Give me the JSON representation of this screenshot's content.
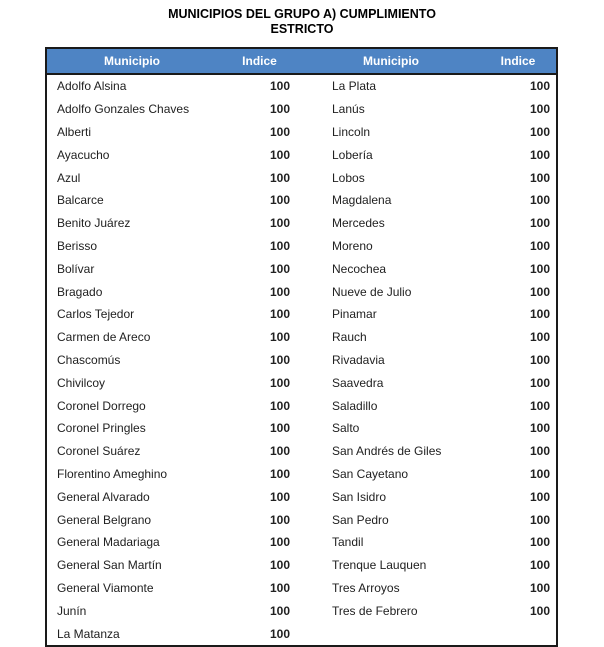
{
  "document": {
    "title_line1": "MUNICIPIOS DEL GRUPO A) CUMPLIMIENTO",
    "title_line2": "ESTRICTO"
  },
  "colors": {
    "header_bg": "#4e84c4",
    "header_text": "#ffffff",
    "border": "#1a1a1a",
    "body_text": "#212121"
  },
  "table": {
    "headers": [
      "Municipio",
      "Indice",
      "Municipio",
      "Indice"
    ],
    "rows": [
      {
        "m1": "Adolfo Alsina",
        "i1": "100",
        "m2": "La Plata",
        "i2": "100"
      },
      {
        "m1": "Adolfo Gonzales Chaves",
        "i1": "100",
        "m2": "Lanús",
        "i2": "100"
      },
      {
        "m1": "Alberti",
        "i1": "100",
        "m2": "Lincoln",
        "i2": "100"
      },
      {
        "m1": "Ayacucho",
        "i1": "100",
        "m2": "Lobería",
        "i2": "100"
      },
      {
        "m1": "Azul",
        "i1": "100",
        "m2": "Lobos",
        "i2": "100"
      },
      {
        "m1": "Balcarce",
        "i1": "100",
        "m2": "Magdalena",
        "i2": "100"
      },
      {
        "m1": "Benito Juárez",
        "i1": "100",
        "m2": "Mercedes",
        "i2": "100"
      },
      {
        "m1": "Berisso",
        "i1": "100",
        "m2": "Moreno",
        "i2": "100"
      },
      {
        "m1": "Bolívar",
        "i1": "100",
        "m2": "Necochea",
        "i2": "100"
      },
      {
        "m1": "Bragado",
        "i1": "100",
        "m2": "Nueve de Julio",
        "i2": "100"
      },
      {
        "m1": "Carlos Tejedor",
        "i1": "100",
        "m2": "Pinamar",
        "i2": "100"
      },
      {
        "m1": "Carmen de Areco",
        "i1": "100",
        "m2": "Rauch",
        "i2": "100"
      },
      {
        "m1": "Chascomús",
        "i1": "100",
        "m2": "Rivadavia",
        "i2": "100"
      },
      {
        "m1": "Chivilcoy",
        "i1": "100",
        "m2": "Saavedra",
        "i2": "100"
      },
      {
        "m1": "Coronel Dorrego",
        "i1": "100",
        "m2": "Saladillo",
        "i2": "100"
      },
      {
        "m1": "Coronel Pringles",
        "i1": "100",
        "m2": "Salto",
        "i2": "100"
      },
      {
        "m1": "Coronel Suárez",
        "i1": "100",
        "m2": "San Andrés de Giles",
        "i2": "100"
      },
      {
        "m1": "Florentino Ameghino",
        "i1": "100",
        "m2": "San Cayetano",
        "i2": "100"
      },
      {
        "m1": "General Alvarado",
        "i1": "100",
        "m2": "San Isidro",
        "i2": "100"
      },
      {
        "m1": "General Belgrano",
        "i1": "100",
        "m2": "San Pedro",
        "i2": "100"
      },
      {
        "m1": "General Madariaga",
        "i1": "100",
        "m2": "Tandil",
        "i2": "100"
      },
      {
        "m1": "General San Martín",
        "i1": "100",
        "m2": "Trenque Lauquen",
        "i2": "100"
      },
      {
        "m1": "General Viamonte",
        "i1": "100",
        "m2": "Tres Arroyos",
        "i2": "100"
      },
      {
        "m1": "Junín",
        "i1": "100",
        "m2": "Tres de Febrero",
        "i2": "100"
      },
      {
        "m1": "La Matanza",
        "i1": "100",
        "m2": "",
        "i2": ""
      }
    ]
  }
}
